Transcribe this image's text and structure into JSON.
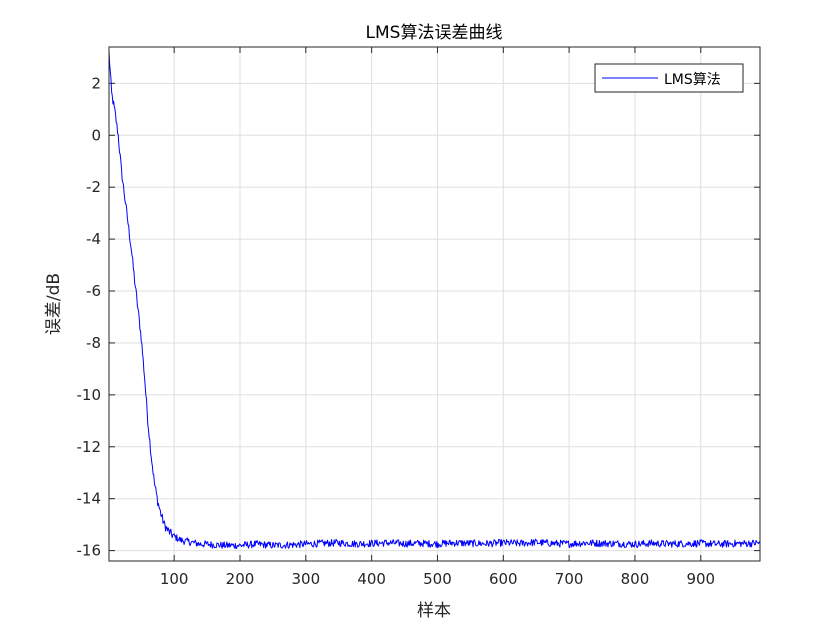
{
  "chart_data": {
    "type": "line",
    "title": "LMS算法误差曲线",
    "xlabel": "样本",
    "ylabel": "误差/dB",
    "xlim": [
      1,
      990
    ],
    "ylim": [
      -16.4,
      3.4
    ],
    "x_ticks": [
      100,
      200,
      300,
      400,
      500,
      600,
      700,
      800,
      900
    ],
    "y_ticks": [
      2,
      0,
      -2,
      -4,
      -6,
      -8,
      -10,
      -12,
      -14,
      -16
    ],
    "grid": true,
    "legend_position": "top-right",
    "series": [
      {
        "name": "LMS算法",
        "color": "#0000ff",
        "x": [
          1,
          5,
          10,
          15,
          20,
          25,
          30,
          35,
          40,
          45,
          50,
          55,
          60,
          65,
          70,
          75,
          80,
          85,
          90,
          95,
          100,
          110,
          120,
          130,
          140,
          150,
          175,
          200,
          225,
          250,
          275,
          300,
          325,
          350,
          375,
          400,
          425,
          450,
          475,
          500,
          525,
          550,
          575,
          600,
          625,
          650,
          675,
          700,
          725,
          750,
          775,
          800,
          825,
          850,
          875,
          900,
          925,
          950,
          975,
          990
        ],
        "values": [
          3.2,
          1.6,
          0.9,
          0.0,
          -1.4,
          -2.4,
          -3.4,
          -4.4,
          -5.6,
          -6.7,
          -7.8,
          -9.3,
          -11.0,
          -12.3,
          -13.4,
          -14.1,
          -14.6,
          -15.0,
          -15.2,
          -15.35,
          -15.45,
          -15.6,
          -15.65,
          -15.7,
          -15.75,
          -15.75,
          -15.8,
          -15.8,
          -15.75,
          -15.8,
          -15.78,
          -15.75,
          -15.72,
          -15.7,
          -15.74,
          -15.72,
          -15.7,
          -15.73,
          -15.72,
          -15.74,
          -15.7,
          -15.72,
          -15.73,
          -15.7,
          -15.72,
          -15.68,
          -15.72,
          -15.74,
          -15.7,
          -15.72,
          -15.73,
          -15.75,
          -15.72,
          -15.74,
          -15.73,
          -15.72,
          -15.75,
          -15.73,
          -15.72,
          -15.7
        ]
      }
    ]
  }
}
